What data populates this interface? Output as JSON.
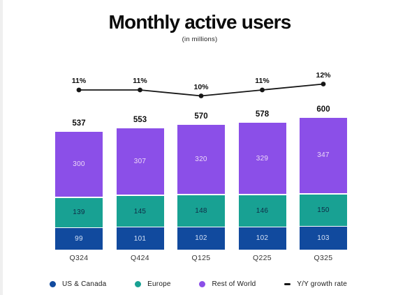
{
  "page": {
    "background": "#ffffff",
    "edge_color": "#efefef"
  },
  "chart_data": {
    "type": "bar",
    "variant": "stacked-column-with-line",
    "title": "Monthly active users",
    "subtitle": "(in millions)",
    "categories": [
      "Q324",
      "Q424",
      "Q125",
      "Q225",
      "Q325"
    ],
    "series": [
      {
        "name": "US & Canada",
        "color": "#114A9E",
        "label_color": "#D3E0F5",
        "values": [
          99,
          101,
          102,
          102,
          103
        ]
      },
      {
        "name": "Europe",
        "color": "#18A193",
        "label_color": "#0F2B46",
        "values": [
          139,
          145,
          148,
          146,
          150
        ]
      },
      {
        "name": "Rest of World",
        "color": "#8B4FE8",
        "label_color": "#EDD9F8",
        "values": [
          300,
          307,
          320,
          329,
          347
        ]
      }
    ],
    "totals": [
      537,
      553,
      570,
      578,
      600
    ],
    "line_series": {
      "name": "Y/Y growth rate",
      "color": "#161616",
      "values": [
        11,
        11,
        10,
        11,
        12
      ],
      "labels": [
        "11%",
        "11%",
        "10%",
        "11%",
        "12%"
      ]
    },
    "ylim": [
      0,
      620
    ],
    "grid": false,
    "legend_position": "bottom"
  }
}
